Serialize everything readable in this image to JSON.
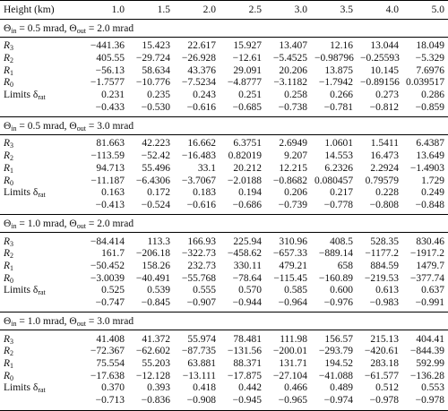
{
  "header": {
    "label": "Height (km)",
    "columns": [
      "1.0",
      "1.5",
      "2.0",
      "2.5",
      "3.0",
      "3.5",
      "4.0",
      "5.0"
    ]
  },
  "row_labels": [
    [
      "R",
      {
        "sub": "3"
      }
    ],
    [
      "R",
      {
        "sub": "2"
      }
    ],
    [
      "R",
      {
        "sub": "1"
      }
    ],
    [
      "R",
      {
        "sub": "0"
      }
    ],
    [
      "Limits δ",
      {
        "sub": "rat"
      }
    ],
    null
  ],
  "sections": [
    {
      "heading": [
        "Θ",
        {
          "sub": "in"
        },
        " = 0.5 mrad, Θ",
        {
          "sub": "out"
        },
        " = 2.0 mrad"
      ],
      "rows": [
        [
          "−441.36",
          "15.423",
          "22.617",
          "15.927",
          "13.407",
          "12.16",
          "13.044",
          "18.049"
        ],
        [
          "405.55",
          "−29.724",
          "−26.928",
          "−12.61",
          "−5.4525",
          "−0.98796",
          "−0.25593",
          "−5.329"
        ],
        [
          "−56.13",
          "58.634",
          "43.376",
          "29.091",
          "20.206",
          "13.875",
          "10.145",
          "7.6976"
        ],
        [
          "−1.7577",
          "−10.776",
          "−7.5234",
          "−4.8777",
          "−3.1182",
          "−1.7942",
          "−0.89156",
          "0.039517"
        ],
        [
          "0.231",
          "0.235",
          "0.243",
          "0.251",
          "0.258",
          "0.266",
          "0.273",
          "0.286"
        ],
        [
          "−0.433",
          "−0.530",
          "−0.616",
          "−0.685",
          "−0.738",
          "−0.781",
          "−0.812",
          "−0.859"
        ]
      ]
    },
    {
      "heading": [
        "Θ",
        {
          "sub": "in"
        },
        " = 0.5 mrad, Θ",
        {
          "sub": "out"
        },
        " = 3.0 mrad"
      ],
      "rows": [
        [
          "81.663",
          "42.223",
          "16.662",
          "6.3751",
          "2.6949",
          "1.0601",
          "1.5411",
          "6.4387"
        ],
        [
          "−113.59",
          "−52.42",
          "−16.483",
          "0.82019",
          "9.207",
          "14.553",
          "16.473",
          "13.649"
        ],
        [
          "94.713",
          "55.496",
          "33.1",
          "20.212",
          "12.215",
          "6.2326",
          "2.2924",
          "−1.4903"
        ],
        [
          "−11.187",
          "−6.4306",
          "−3.7067",
          "−2.0188",
          "−0.8682",
          "0.080457",
          "0.79579",
          "1.729"
        ],
        [
          "0.163",
          "0.172",
          "0.183",
          "0.194",
          "0.206",
          "0.217",
          "0.228",
          "0.249"
        ],
        [
          "−0.413",
          "−0.524",
          "−0.616",
          "−0.686",
          "−0.739",
          "−0.778",
          "−0.808",
          "−0.848"
        ]
      ]
    },
    {
      "heading": [
        "Θ",
        {
          "sub": "in"
        },
        " = 1.0 mrad, Θ",
        {
          "sub": "out"
        },
        " = 2.0 mrad"
      ],
      "rows": [
        [
          "−84.414",
          "113.3",
          "166.93",
          "225.94",
          "310.96",
          "408.5",
          "528.35",
          "830.46"
        ],
        [
          "161.7",
          "−206.18",
          "−322.73",
          "−458.62",
          "−657.33",
          "−889.14",
          "−1177.2",
          "−1917.2"
        ],
        [
          "−50.452",
          "158.26",
          "232.73",
          "330.11",
          "479.21",
          "658",
          "884.59",
          "1479.7"
        ],
        [
          "−3.0039",
          "−40.491",
          "−55.768",
          "−78.64",
          "−115.45",
          "−160.89",
          "−219.53",
          "−377.74"
        ],
        [
          "0.525",
          "0.539",
          "0.555",
          "0.570",
          "0.585",
          "0.600",
          "0.613",
          "0.637"
        ],
        [
          "−0.747",
          "−0.845",
          "−0.907",
          "−0.944",
          "−0.964",
          "−0.976",
          "−0.983",
          "−0.991"
        ]
      ]
    },
    {
      "heading": [
        "Θ",
        {
          "sub": "in"
        },
        " = 1.0 mrad, Θ",
        {
          "sub": "out"
        },
        " = 3.0 mrad"
      ],
      "rows": [
        [
          "41.408",
          "41.372",
          "55.974",
          "78.481",
          "111.98",
          "156.57",
          "215.13",
          "404.41"
        ],
        [
          "−72.367",
          "−62.602",
          "−87.735",
          "−131.56",
          "−200.01",
          "−293.79",
          "−420.61",
          "−844.39"
        ],
        [
          "75.554",
          "55.203",
          "63.881",
          "88.371",
          "131.71",
          "194.52",
          "283.18",
          "592.99"
        ],
        [
          "−17.638",
          "−12.128",
          "−13.111",
          "−17.875",
          "−27.104",
          "−41.088",
          "−61.577",
          "−136.28"
        ],
        [
          "0.370",
          "0.393",
          "0.418",
          "0.442",
          "0.466",
          "0.489",
          "0.512",
          "0.553"
        ],
        [
          "−0.713",
          "−0.836",
          "−0.908",
          "−0.945",
          "−0.965",
          "−0.974",
          "−0.978",
          "−0.978"
        ]
      ]
    }
  ]
}
